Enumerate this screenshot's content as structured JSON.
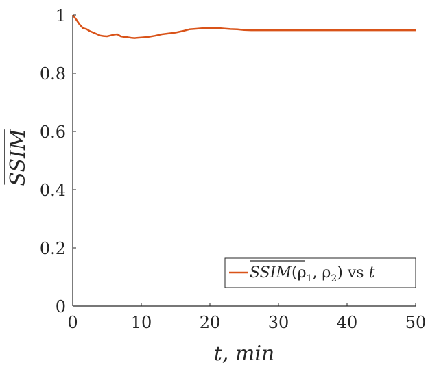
{
  "chart_data": {
    "type": "line",
    "title": "",
    "xlabel": "t, min",
    "ylabel": "SSIM",
    "ylabel_overline": true,
    "xlim": [
      0,
      50
    ],
    "ylim": [
      0,
      1
    ],
    "xticks": [
      "0",
      "10",
      "20",
      "30",
      "40",
      "50"
    ],
    "yticks": [
      "0",
      "0.2",
      "0.4",
      "0.6",
      "0.8",
      "1"
    ],
    "grid": false,
    "legend_position": "bottom-right",
    "series": [
      {
        "name": "SSIM(ρ1, ρ2) vs t",
        "legend": {
          "term": "SSIM",
          "args": "(ρ",
          "sub1": "1",
          "mid": ", ρ",
          "sub2": "2",
          "close": ")",
          "vs": " vs ",
          "var": "t"
        },
        "color": "#D95319",
        "x": [
          0,
          0.5,
          1,
          1.5,
          2,
          2.5,
          3,
          3.5,
          4,
          4.5,
          5,
          5.5,
          6,
          6.5,
          7,
          7.5,
          8,
          8.5,
          9,
          9.5,
          10,
          11,
          12,
          13,
          14,
          15,
          16,
          17,
          18,
          19,
          20,
          21,
          22,
          23,
          24,
          25,
          26,
          27,
          28,
          29,
          30,
          32,
          34,
          36,
          38,
          40,
          42,
          44,
          46,
          48,
          50
        ],
        "values": [
          1.0,
          0.985,
          0.968,
          0.955,
          0.952,
          0.945,
          0.94,
          0.935,
          0.93,
          0.928,
          0.927,
          0.93,
          0.933,
          0.934,
          0.927,
          0.925,
          0.924,
          0.922,
          0.921,
          0.922,
          0.923,
          0.925,
          0.929,
          0.934,
          0.937,
          0.94,
          0.945,
          0.951,
          0.953,
          0.955,
          0.956,
          0.956,
          0.954,
          0.952,
          0.951,
          0.949,
          0.948,
          0.948,
          0.948,
          0.948,
          0.948,
          0.948,
          0.948,
          0.948,
          0.948,
          0.948,
          0.948,
          0.948,
          0.948,
          0.948,
          0.948
        ]
      }
    ]
  }
}
